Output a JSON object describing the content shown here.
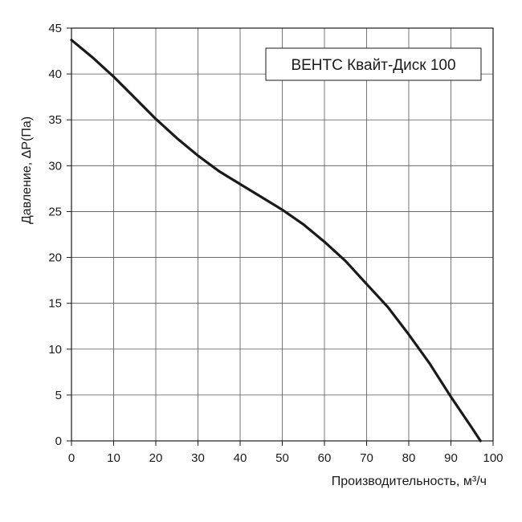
{
  "chart_data": {
    "type": "line",
    "title": "",
    "xlabel": "Производительность, м³/ч",
    "ylabel": "Давление, ΔP(Па)",
    "xlim": [
      0,
      100
    ],
    "ylim": [
      0,
      45
    ],
    "xticks": [
      0,
      10,
      20,
      30,
      40,
      50,
      60,
      70,
      80,
      90,
      100
    ],
    "yticks": [
      0,
      5,
      10,
      15,
      20,
      25,
      30,
      35,
      40,
      45
    ],
    "grid": true,
    "legend": "top-right",
    "series": [
      {
        "name": "ВЕНТС Квайт-Диск 100",
        "color": "#1a1a1a",
        "x": [
          0,
          5,
          10,
          15,
          20,
          25,
          30,
          35,
          40,
          45,
          50,
          55,
          60,
          65,
          70,
          75,
          80,
          85,
          90,
          95,
          97
        ],
        "y": [
          43.7,
          41.8,
          39.7,
          37.4,
          35.1,
          33.0,
          31.1,
          29.4,
          28.0,
          26.6,
          25.2,
          23.6,
          21.7,
          19.6,
          17.1,
          14.6,
          11.6,
          8.4,
          4.8,
          1.4,
          0
        ]
      }
    ]
  }
}
